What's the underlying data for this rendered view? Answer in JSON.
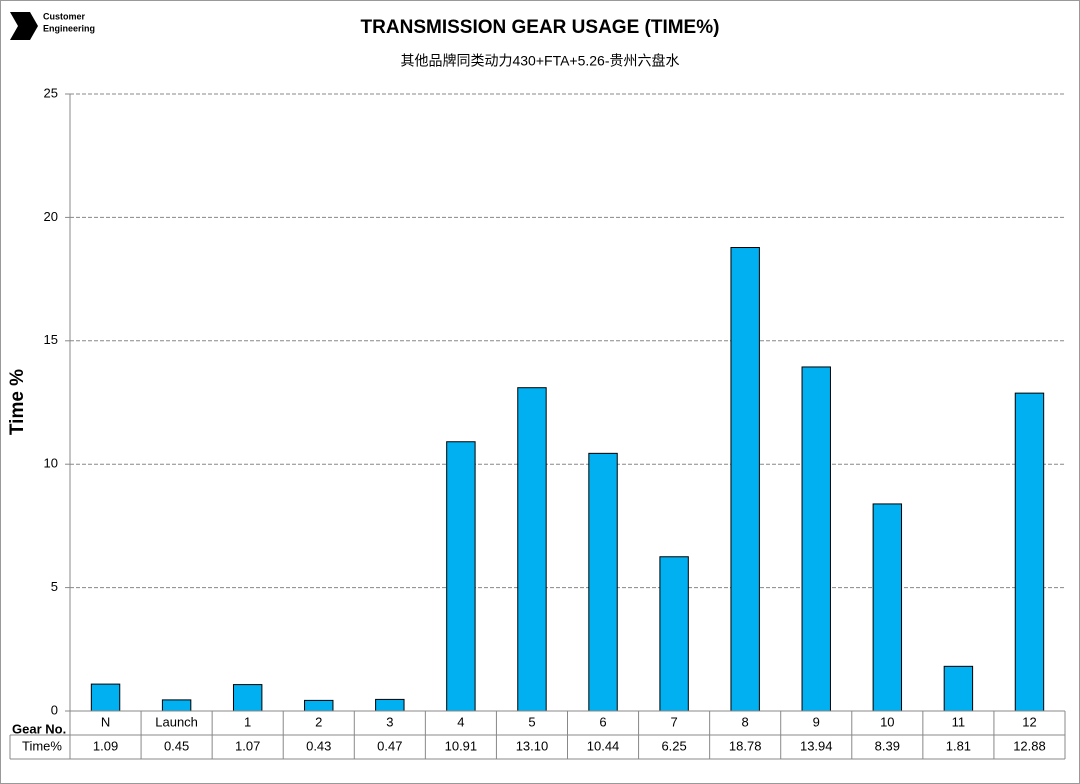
{
  "logo_text": [
    "Customer",
    "Engineering"
  ],
  "chart_data": {
    "type": "bar",
    "title": "TRANSMISSION GEAR USAGE (TIME%)",
    "subtitle": "其他品牌同类动力430+FTA+5.26-贵州六盘水",
    "y_label": "Time %",
    "table_row_labels": [
      "Gear No.",
      "Time%"
    ],
    "categories": [
      "N",
      "Launch",
      "1",
      "2",
      "3",
      "4",
      "5",
      "6",
      "7",
      "8",
      "9",
      "10",
      "11",
      "12"
    ],
    "values": [
      1.09,
      0.45,
      1.07,
      0.43,
      0.47,
      10.91,
      13.1,
      10.44,
      6.25,
      18.78,
      13.94,
      8.39,
      1.81,
      12.88
    ],
    "value_labels": [
      "1.09",
      "0.45",
      "1.07",
      "0.43",
      "0.47",
      "10.91",
      "13.10",
      "10.44",
      "6.25",
      "18.78",
      "13.94",
      "8.39",
      "1.81",
      "12.88"
    ],
    "color": "#00b0f0",
    "ylim": [
      0,
      25
    ],
    "yticks": [
      0,
      5,
      10,
      15,
      20,
      25
    ],
    "grid": true
  }
}
